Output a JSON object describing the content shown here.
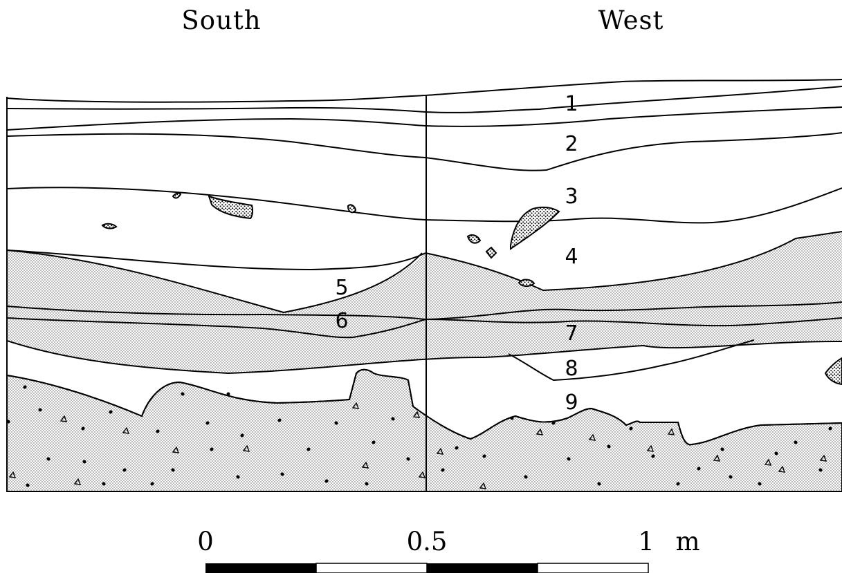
{
  "walls": {
    "left_label": "South",
    "right_label": "West"
  },
  "layers": [
    "1",
    "2",
    "3",
    "4",
    "5",
    "6",
    "7",
    "8",
    "9"
  ],
  "scale": {
    "tick_start": "0",
    "tick_mid": "0.5",
    "tick_end": "1",
    "unit": "m"
  }
}
